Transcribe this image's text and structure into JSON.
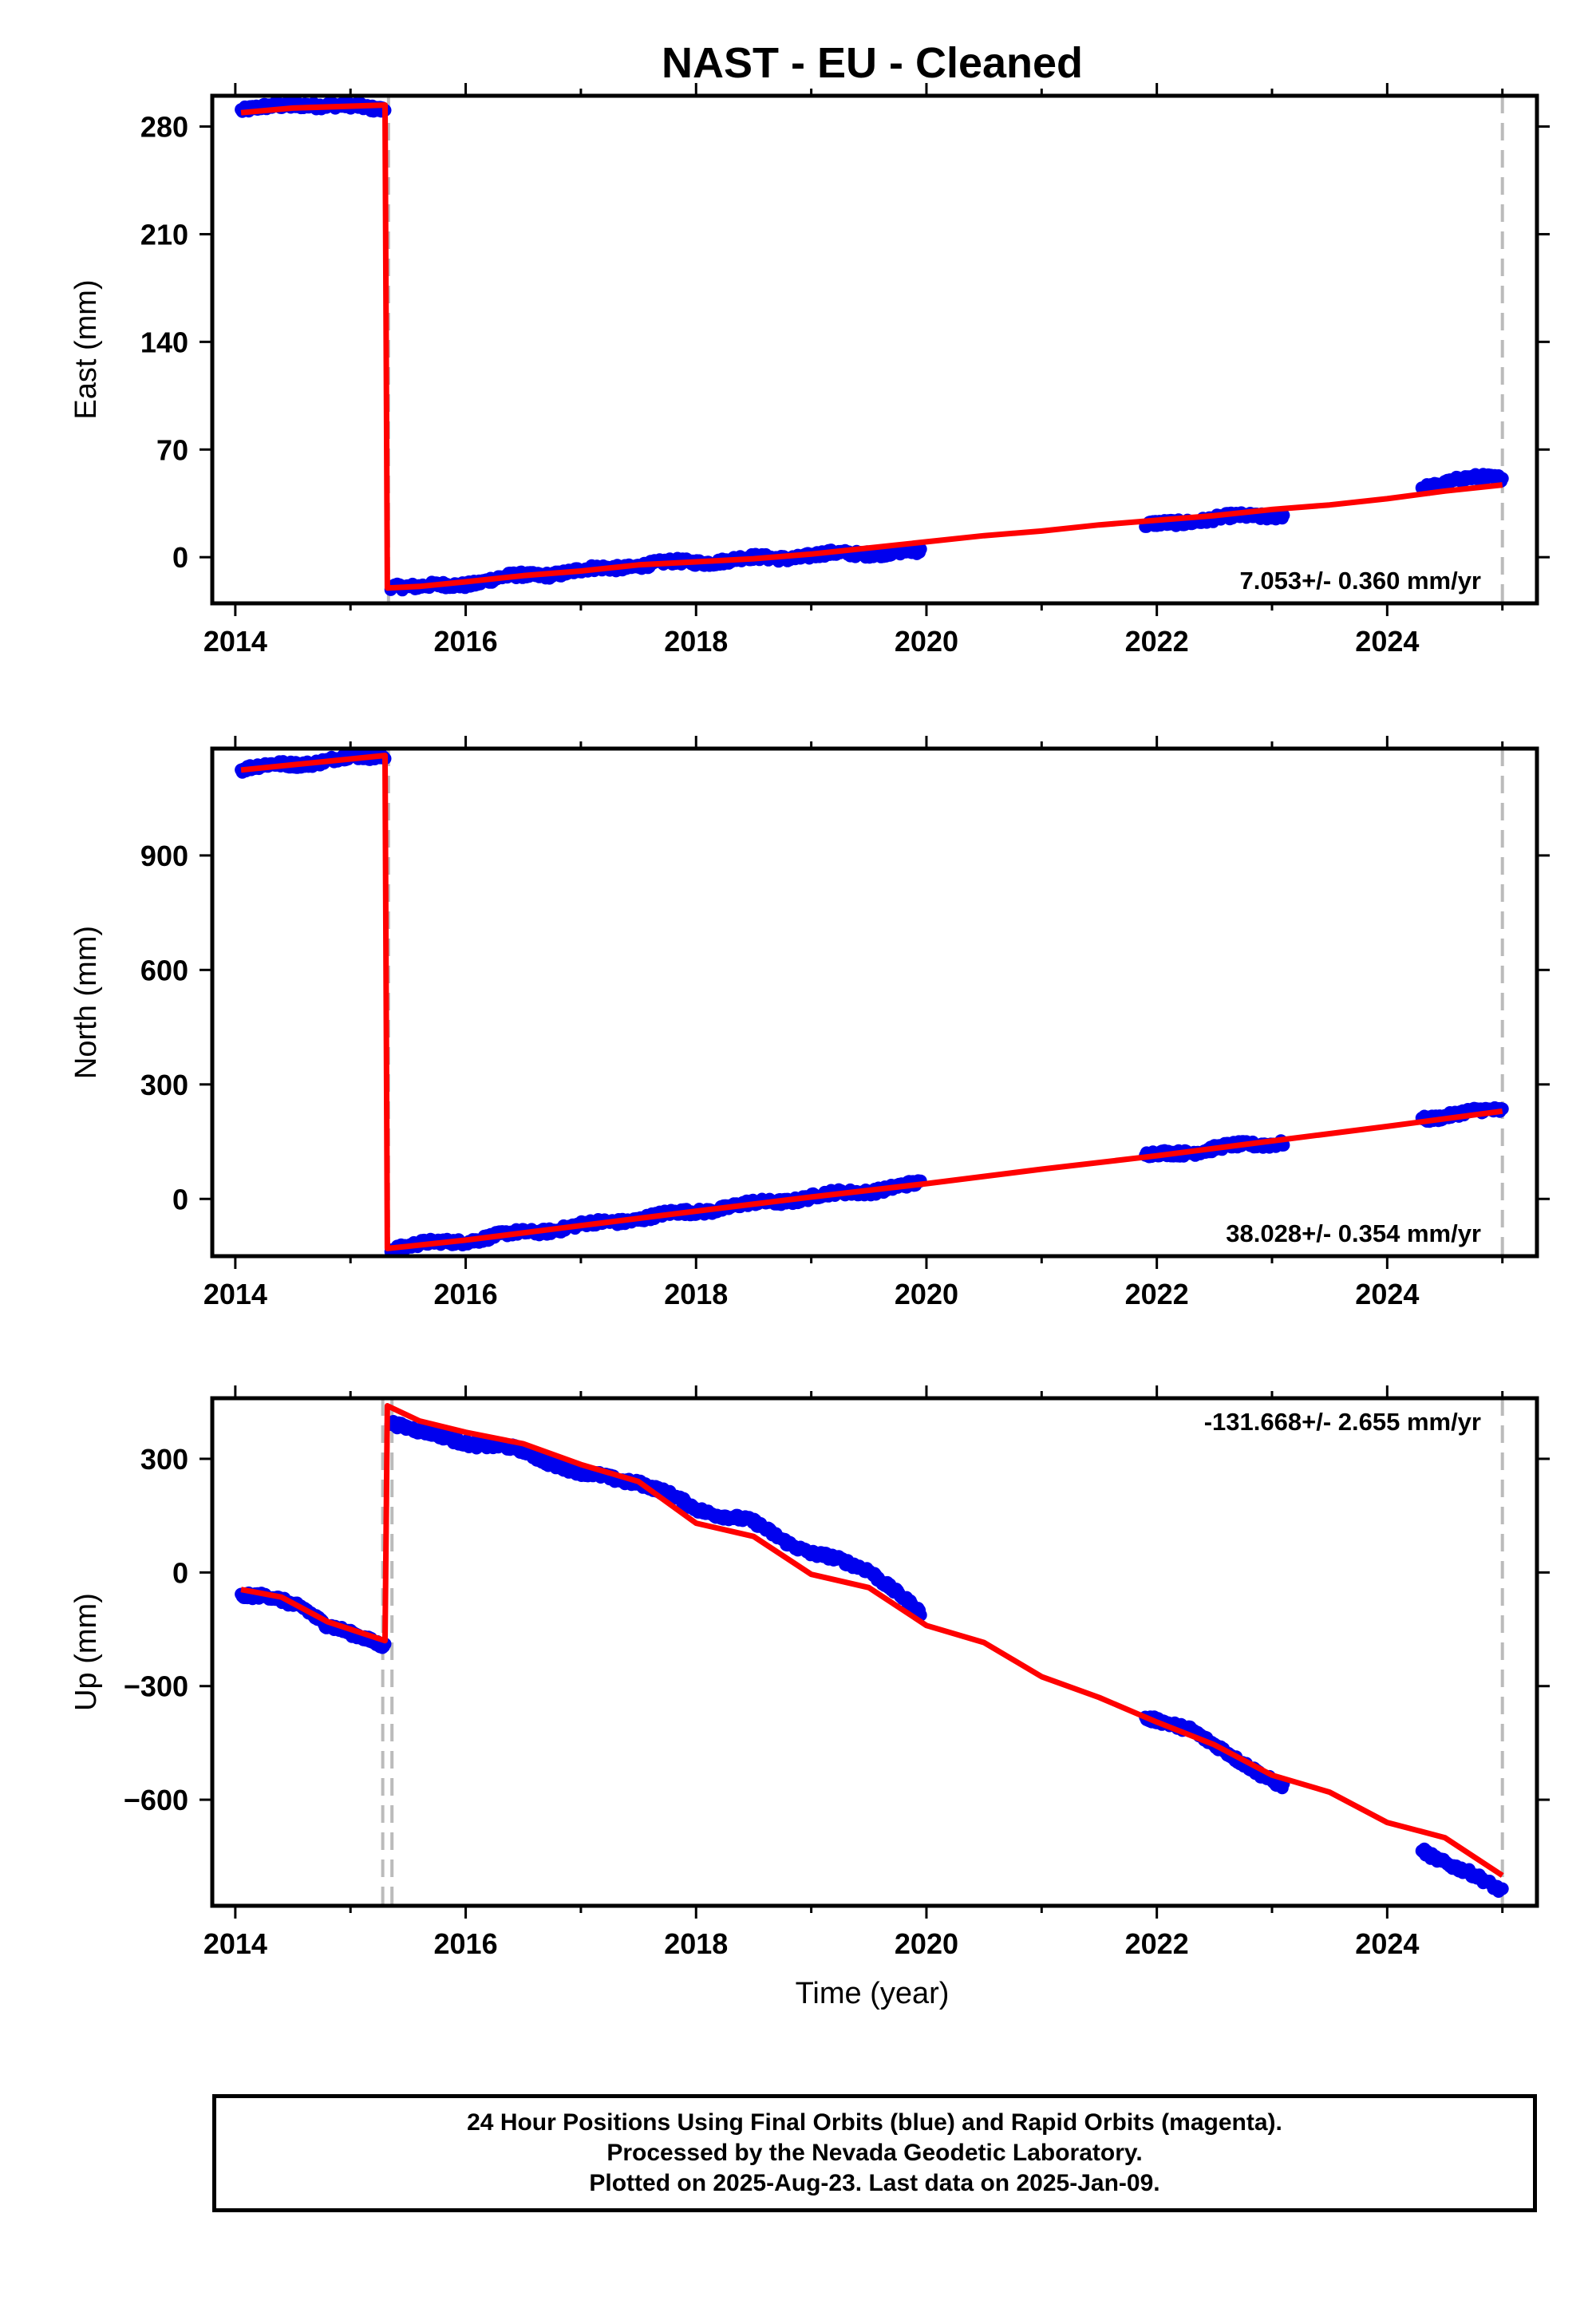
{
  "title": "NAST  - EU - Cleaned",
  "xlabel": "Time (year)",
  "colors": {
    "data": "#0000ee",
    "model": "#ff0000",
    "offset": "#bbbbbb",
    "frame": "#000000"
  },
  "chart_data": [
    {
      "type": "scatter",
      "ylabel": "East (mm)",
      "xlim": [
        2013.8,
        2025.3
      ],
      "ylim": [
        -30,
        300
      ],
      "xticks": [
        2014,
        2016,
        2018,
        2020,
        2022,
        2024
      ],
      "yticks": [
        0,
        70,
        140,
        210,
        280
      ],
      "velocity_label": "7.053+/- 0.360 mm/yr",
      "offsets": [
        2015.33,
        2025.0
      ],
      "series": [
        {
          "x": [
            2014.05,
            2014.3,
            2014.6,
            2014.9,
            2015.2,
            2015.3
          ],
          "y": [
            291,
            292,
            295,
            293,
            292,
            292
          ]
        },
        {
          "x": [
            2015.35,
            2015.6,
            2016.0,
            2016.5,
            2017.0,
            2017.5,
            2018.0,
            2018.5,
            2019.0,
            2019.5,
            2019.95
          ],
          "y": [
            -18,
            -20,
            -17,
            -12,
            -9,
            -5,
            -3,
            -1,
            1,
            3,
            3
          ]
        },
        {
          "x": [
            2021.9,
            2022.3,
            2022.7,
            2023.1
          ],
          "y": [
            20,
            24,
            26,
            28
          ]
        },
        {
          "x": [
            2024.3,
            2024.6,
            2025.0
          ],
          "y": [
            46,
            50,
            52
          ]
        }
      ],
      "model": {
        "x": [
          2014.05,
          2014.5,
          2015.3,
          2015.32,
          2015.6,
          2016.0,
          2016.5,
          2017.0,
          2017.5,
          2018.0,
          2018.5,
          2019.0,
          2019.5,
          2020.0,
          2020.5,
          2021.0,
          2021.5,
          2022.0,
          2022.5,
          2023.0,
          2023.5,
          2024.0,
          2024.5,
          2025.0
        ],
        "y": [
          289,
          292,
          294,
          -20,
          -19,
          -16,
          -12,
          -9,
          -5,
          -3,
          -1,
          2,
          6,
          10,
          14,
          17,
          21,
          24,
          27,
          31,
          34,
          38,
          43,
          47
        ]
      }
    },
    {
      "type": "scatter",
      "ylabel": "North (mm)",
      "xlim": [
        2013.8,
        2025.3
      ],
      "ylim": [
        -150,
        1180
      ],
      "xticks": [
        2014,
        2016,
        2018,
        2020,
        2022,
        2024
      ],
      "yticks": [
        0,
        300,
        600,
        900
      ],
      "velocity_label": "38.028+/- 0.354 mm/yr",
      "offsets": [
        2015.33,
        2025.0
      ],
      "series": [
        {
          "x": [
            2014.05,
            2014.5,
            2015.0,
            2015.3
          ],
          "y": [
            1127,
            1140,
            1155,
            1162
          ]
        },
        {
          "x": [
            2015.35,
            2016.0,
            2017.0,
            2018.0,
            2019.0,
            2019.95
          ],
          "y": [
            -128,
            -108,
            -70,
            -32,
            5,
            38
          ]
        },
        {
          "x": [
            2021.9,
            2022.5,
            2023.1
          ],
          "y": [
            112,
            132,
            150
          ]
        },
        {
          "x": [
            2024.3,
            2024.7,
            2025.0
          ],
          "y": [
            212,
            225,
            235
          ]
        }
      ],
      "model": {
        "x": [
          2014.05,
          2015.3,
          2015.32,
          2016.0,
          2017.0,
          2018.0,
          2019.0,
          2020.0,
          2021.0,
          2022.0,
          2023.0,
          2024.0,
          2025.0
        ],
        "y": [
          1124,
          1162,
          -130,
          -108,
          -70,
          -32,
          5,
          40,
          78,
          113,
          152,
          190,
          230
        ]
      }
    },
    {
      "type": "scatter",
      "ylabel": "Up (mm)",
      "xlim": [
        2013.8,
        2025.3
      ],
      "ylim": [
        -880,
        460
      ],
      "xticks": [
        2014,
        2016,
        2018,
        2020,
        2022,
        2024
      ],
      "yticks": [
        -600,
        -300,
        0,
        300
      ],
      "velocity_label": "-131.668+/- 2.655 mm/yr",
      "offsets": [
        2015.28,
        2015.36,
        2025.0
      ],
      "series": [
        {
          "x": [
            2014.05,
            2014.3,
            2014.6,
            2014.8,
            2015.0,
            2015.3
          ],
          "y": [
            -60,
            -68,
            -90,
            -140,
            -165,
            -190
          ]
        },
        {
          "x": [
            2015.35,
            2015.6,
            2016.0,
            2016.5,
            2017.0,
            2017.5,
            2018.0,
            2018.5,
            2019.0,
            2019.5,
            2019.95
          ],
          "y": [
            400,
            370,
            345,
            320,
            260,
            240,
            170,
            130,
            50,
            10,
            -110
          ]
        },
        {
          "x": [
            2021.9,
            2022.3,
            2022.7,
            2023.1
          ],
          "y": [
            -390,
            -410,
            -500,
            -560
          ]
        },
        {
          "x": [
            2024.3,
            2024.6,
            2025.0
          ],
          "y": [
            -730,
            -780,
            -840
          ]
        }
      ],
      "model": {
        "x": [
          2014.05,
          2014.4,
          2014.8,
          2015.3,
          2015.32,
          2015.6,
          2016.0,
          2016.5,
          2017.0,
          2017.5,
          2018.0,
          2018.5,
          2019.0,
          2019.5,
          2020.0,
          2020.5,
          2021.0,
          2021.5,
          2022.0,
          2022.5,
          2023.0,
          2023.5,
          2024.0,
          2024.5,
          2025.0
        ],
        "y": [
          -45,
          -65,
          -130,
          -180,
          440,
          400,
          370,
          340,
          285,
          240,
          130,
          95,
          -5,
          -40,
          -140,
          -185,
          -275,
          -330,
          -395,
          -455,
          -535,
          -580,
          -660,
          -700,
          -800
        ]
      }
    }
  ],
  "caption": {
    "line1": "24 Hour Positions Using Final Orbits (blue) and Rapid Orbits (magenta).",
    "line2": "Processed by the Nevada Geodetic Laboratory.",
    "line3": "Plotted on 2025-Aug-23. Last data on 2025-Jan-09."
  }
}
